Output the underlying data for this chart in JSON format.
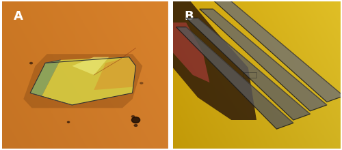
{
  "fig_width": 5.0,
  "fig_height": 2.2,
  "dpi": 100,
  "label_A": "A",
  "label_B": "B",
  "label_color": "white",
  "label_fontsize": 13,
  "label_fontweight": "bold",
  "bg_color_A": "#c87838",
  "bg_color_B": "#c8952a",
  "divider_color": "white",
  "divider_linewidth": 3
}
